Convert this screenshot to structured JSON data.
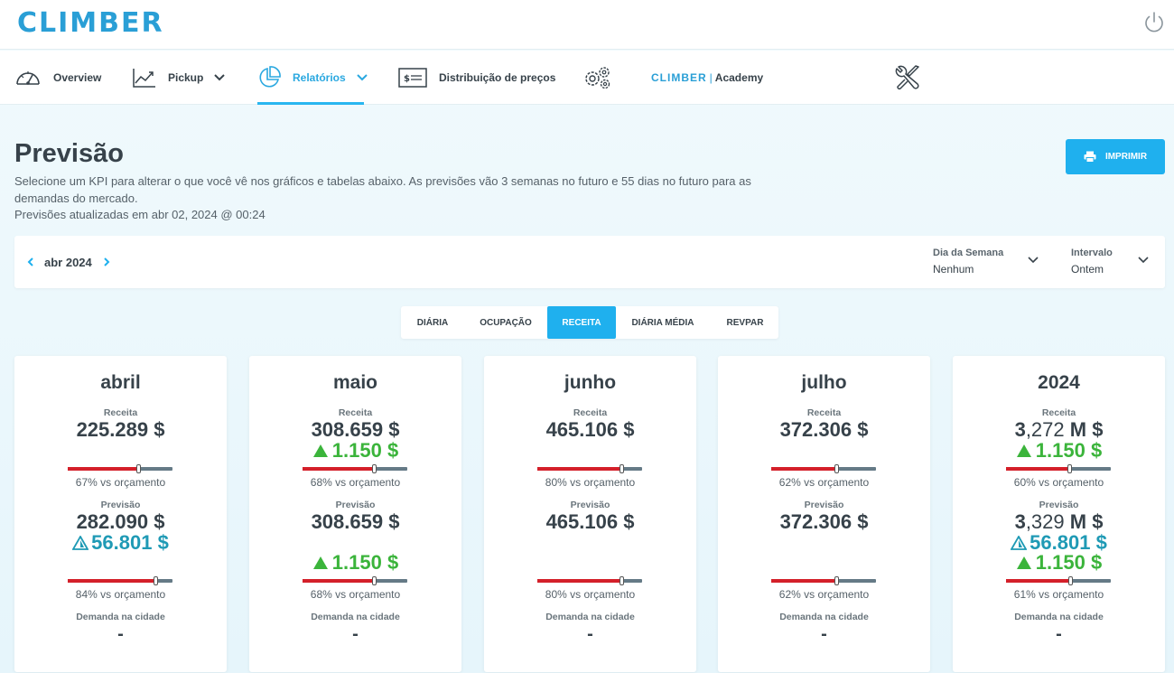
{
  "app": {
    "logo": "CLIMBER"
  },
  "nav": {
    "overview": "Overview",
    "pickup": "Pickup",
    "relatorios": "Relatórios",
    "distribuicao": "Distribuição de preços",
    "academy_brand": "CLIMBER",
    "academy_sep": "|",
    "academy_label": "Academy"
  },
  "header": {
    "title": "Previsão",
    "description": "Selecione um KPI para alterar o que você vê nos gráficos e tabelas abaixo. As previsões vão 3 semanas no futuro e 55 dias no futuro para as demandas do mercado.",
    "updated": "Previsões atualizadas em abr 02, 2024 @ 00:24",
    "print_label": "IMPRIMIR"
  },
  "filters": {
    "month": "abr 2024",
    "weekday_label": "Dia da Semana",
    "weekday_value": "Nenhum",
    "interval_label": "Intervalo",
    "interval_value": "Ontem"
  },
  "tabs": [
    {
      "label": "DIÁRIA",
      "active": false
    },
    {
      "label": "OCUPAÇÃO",
      "active": false
    },
    {
      "label": "RECEITA",
      "active": true
    },
    {
      "label": "DIÁRIA MÉDIA",
      "active": false
    },
    {
      "label": "REVPAR",
      "active": false
    }
  ],
  "labels": {
    "receita": "Receita",
    "previsao": "Previsão",
    "demanda": "Demanda na cidade"
  },
  "colors": {
    "accent": "#1fb0ee",
    "bar_fill": "#d4202a",
    "bar_track": "#657a86",
    "up_green": "#3bb43b",
    "up_teal": "#1f9ab5"
  },
  "cards": [
    {
      "title": "abril",
      "receita_value": "225.289 $",
      "receita_pct": "67% vs orçamento",
      "receita_progress": 0.67,
      "previsao_value": "282.090 $",
      "previsao_delta_teal": "56.801 $",
      "previsao_pct": "84% vs orçamento",
      "previsao_progress": 0.84,
      "demanda": "-"
    },
    {
      "title": "maio",
      "receita_value": "308.659 $",
      "receita_delta": "1.150 $",
      "receita_pct": "68% vs orçamento",
      "receita_progress": 0.68,
      "previsao_value": "308.659 $",
      "previsao_delta_green": "1.150 $",
      "previsao_pct": "68% vs orçamento",
      "previsao_progress": 0.68,
      "demanda": "-"
    },
    {
      "title": "junho",
      "receita_value": "465.106 $",
      "receita_pct": "80% vs orçamento",
      "receita_progress": 0.8,
      "previsao_value": "465.106 $",
      "previsao_pct": "80% vs orçamento",
      "previsao_progress": 0.8,
      "demanda": "-"
    },
    {
      "title": "julho",
      "receita_value": "372.306 $",
      "receita_pct": "62% vs orçamento",
      "receita_progress": 0.62,
      "previsao_value": "372.306 $",
      "previsao_pct": "62% vs orçamento",
      "previsao_progress": 0.62,
      "demanda": "-"
    },
    {
      "title": "2024",
      "receita_value_main": "3",
      "receita_value_rest": ",272",
      "receita_value_unit": " M $",
      "receita_delta": "1.150 $",
      "receita_pct": "60% vs orçamento",
      "receita_progress": 0.6,
      "previsao_value_main": "3",
      "previsao_value_rest": ",329",
      "previsao_value_unit": " M $",
      "previsao_delta_teal": "56.801 $",
      "previsao_delta_green": "1.150 $",
      "previsao_pct": "61% vs orçamento",
      "previsao_progress": 0.61,
      "demanda": "-"
    }
  ]
}
